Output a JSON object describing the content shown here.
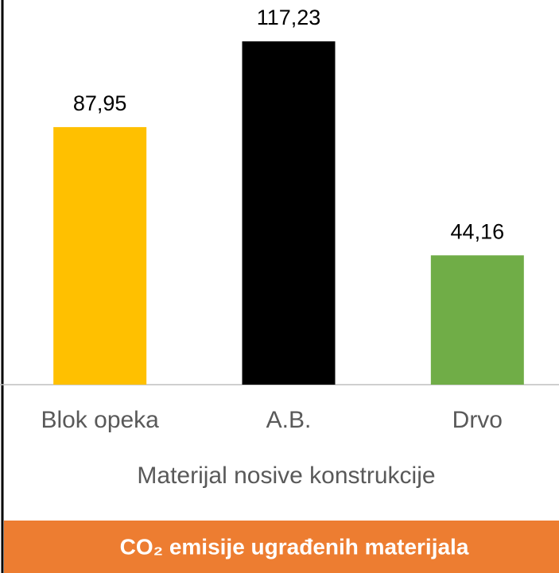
{
  "chart_data": {
    "type": "bar",
    "title": "CO₂ emisije ugrađenih materijala",
    "x_label": "Materijal nosive konstrukcije",
    "categories": [
      "Blok opeka",
      "A.B.",
      "Drvo"
    ],
    "values": [
      87.95,
      117.23,
      44.16
    ],
    "value_labels": [
      "87,95",
      "117,23",
      "44,16"
    ],
    "colors": [
      "#ffc000",
      "#000000",
      "#70ad47"
    ],
    "ylim": [
      0,
      130
    ]
  }
}
